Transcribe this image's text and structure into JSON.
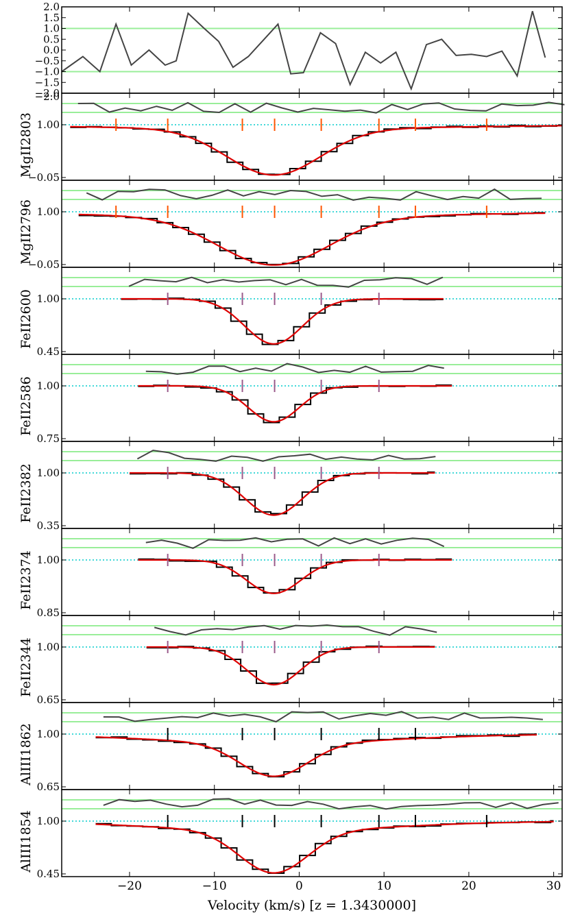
{
  "chart_data": {
    "type": "line",
    "figure": {
      "xlabel": "Velocity (km/s) [z = 1.3430000]",
      "xlim": [
        -28,
        31
      ],
      "x_ticks": [
        -20,
        -10,
        0,
        10,
        20,
        30
      ]
    },
    "residual_panel": {
      "ylim": [
        -2.0,
        2.0
      ],
      "y_ticks": [
        "2.0",
        "1.5",
        "1.0",
        "0.5",
        "0.0",
        "−0.5",
        "−1.0",
        "−1.5",
        "−2.0"
      ],
      "reference_lines": [
        -1,
        1
      ],
      "residuals": [
        [
          -28,
          -1.0
        ],
        [
          -25.5,
          -0.3
        ],
        [
          -23.5,
          -1.0
        ],
        [
          -21.6,
          1.2
        ],
        [
          -19.8,
          -0.7
        ],
        [
          -17.7,
          0.0
        ],
        [
          -15.8,
          -0.7
        ],
        [
          -14.5,
          -0.5
        ],
        [
          -13.1,
          1.7
        ],
        [
          -11.2,
          1.0
        ],
        [
          -9.5,
          0.4
        ],
        [
          -7.8,
          -0.8
        ],
        [
          -6.0,
          -0.3
        ],
        [
          -2.5,
          1.2
        ],
        [
          -1.0,
          -1.1
        ],
        [
          0.5,
          -1.05
        ],
        [
          2.5,
          0.8
        ],
        [
          4.3,
          0.3
        ],
        [
          6.0,
          -1.6
        ],
        [
          7.8,
          -0.1
        ],
        [
          9.6,
          -0.6
        ],
        [
          11.4,
          -0.1
        ],
        [
          13.2,
          -1.8
        ],
        [
          15.0,
          0.25
        ],
        [
          16.8,
          0.5
        ],
        [
          18.5,
          -0.25
        ],
        [
          20.3,
          -0.2
        ],
        [
          22.1,
          -0.3
        ],
        [
          23.9,
          -0.05
        ],
        [
          25.7,
          -1.2
        ],
        [
          27.5,
          1.8
        ],
        [
          29.0,
          -0.35
        ]
      ]
    },
    "component_velocities": [
      -21.6,
      -15.5,
      -6.7,
      -2.9,
      2.6,
      9.4,
      13.7,
      22.1
    ],
    "panels": [
      {
        "label": "MgII2803",
        "ylim": [
          -0.05,
          1.0
        ],
        "y_ticks": [
          "1.00",
          "−0.05"
        ],
        "colorkey": "orange",
        "v0": -3,
        "sigma": 5.5,
        "depth": 0.92,
        "wing": 0.08,
        "wing_sigma": 20,
        "vmin": -27,
        "vmax": 31,
        "step": 1.85,
        "ticks": [
          -21.6,
          -15.5,
          -6.7,
          -2.9,
          2.6,
          9.4,
          13.7,
          22.1
        ]
      },
      {
        "label": "MgII2796",
        "ylim": [
          -0.05,
          1.0
        ],
        "y_ticks": [
          "1.00",
          "−0.05"
        ],
        "colorkey": "orange",
        "v0": -3,
        "sigma": 6.5,
        "depth": 0.96,
        "wing": 0.1,
        "wing_sigma": 20,
        "vmin": -26,
        "vmax": 29,
        "step": 1.85,
        "ticks": [
          -21.6,
          -15.5,
          -6.7,
          -2.9,
          2.6,
          9.4,
          13.7,
          22.1
        ]
      },
      {
        "label": "FeII2600",
        "ylim": [
          0.45,
          1.0
        ],
        "y_ticks": [
          "1.00",
          "0.45"
        ],
        "colorkey": "purple",
        "v0": -3,
        "sigma": 3.4,
        "depth": 0.47,
        "wing": 0.0,
        "wing_sigma": 10,
        "vmin": -21,
        "vmax": 17,
        "step": 1.85,
        "ticks": [
          -15.5,
          -6.7,
          -2.9,
          2.6,
          9.4
        ]
      },
      {
        "label": "FeII2586",
        "ylim": [
          0.75,
          1.0
        ],
        "y_ticks": [
          "1.00",
          "0.75"
        ],
        "colorkey": "purple",
        "v0": -3,
        "sigma": 3.0,
        "depth": 0.17,
        "wing": 0.0,
        "wing_sigma": 10,
        "vmin": -19,
        "vmax": 18,
        "step": 1.85,
        "ticks": [
          -15.5,
          -6.7,
          -2.9,
          2.6,
          9.4
        ]
      },
      {
        "label": "FeII2382",
        "ylim": [
          0.35,
          1.0
        ],
        "y_ticks": [
          "1.00",
          "0.35"
        ],
        "colorkey": "purple",
        "v0": -3,
        "sigma": 3.4,
        "depth": 0.52,
        "wing": 0.0,
        "wing_sigma": 10,
        "vmin": -20,
        "vmax": 16,
        "step": 1.85,
        "ticks": [
          -15.5,
          -6.7,
          -2.9,
          2.6,
          9.4
        ]
      },
      {
        "label": "FeII2374",
        "ylim": [
          0.85,
          1.0
        ],
        "y_ticks": [
          "1.00",
          "0.85"
        ],
        "colorkey": "purple",
        "v0": -3,
        "sigma": 3.2,
        "depth": 0.095,
        "wing": 0.0,
        "wing_sigma": 10,
        "vmin": -19,
        "vmax": 18,
        "step": 1.85,
        "ticks": [
          -15.5,
          -6.7,
          -2.9,
          2.6,
          9.4
        ]
      },
      {
        "label": "FeII2344",
        "ylim": [
          0.65,
          1.0
        ],
        "y_ticks": [
          "1.00",
          "0.65"
        ],
        "colorkey": "purple",
        "v0": -3,
        "sigma": 3.2,
        "depth": 0.25,
        "wing": 0.0,
        "wing_sigma": 10,
        "vmin": -18,
        "vmax": 16,
        "step": 1.85,
        "ticks": [
          -15.5,
          -6.7,
          -2.9,
          2.6,
          9.4
        ]
      },
      {
        "label": "AlIII1862",
        "ylim": [
          0.65,
          1.0
        ],
        "y_ticks": [
          "1.00",
          "0.65"
        ],
        "colorkey": "black",
        "v0": -3,
        "sigma": 4.0,
        "depth": 0.22,
        "wing": 0.06,
        "wing_sigma": 14,
        "vmin": -24,
        "vmax": 28,
        "step": 1.85,
        "ticks": [
          -15.5,
          -6.7,
          -2.9,
          2.6,
          9.4,
          13.7
        ]
      },
      {
        "label": "AlIII1854",
        "ylim": [
          0.45,
          1.0
        ],
        "y_ticks": [
          "1.00",
          "0.45"
        ],
        "colorkey": "black",
        "v0": -3,
        "sigma": 4.0,
        "depth": 0.44,
        "wing": 0.1,
        "wing_sigma": 14,
        "vmin": -24,
        "vmax": 30,
        "step": 1.85,
        "ticks": [
          -15.5,
          -6.7,
          -2.9,
          2.6,
          9.4,
          13.7,
          22.1
        ]
      }
    ],
    "colors": {
      "data": "#000000",
      "model": "#dd0000",
      "residual": "#444444",
      "reference": "#99ee99",
      "continuum": "#00cccc",
      "tick_orange": "#ff5500",
      "tick_purple": "#9a5a8a",
      "tick_black": "#000000"
    }
  }
}
